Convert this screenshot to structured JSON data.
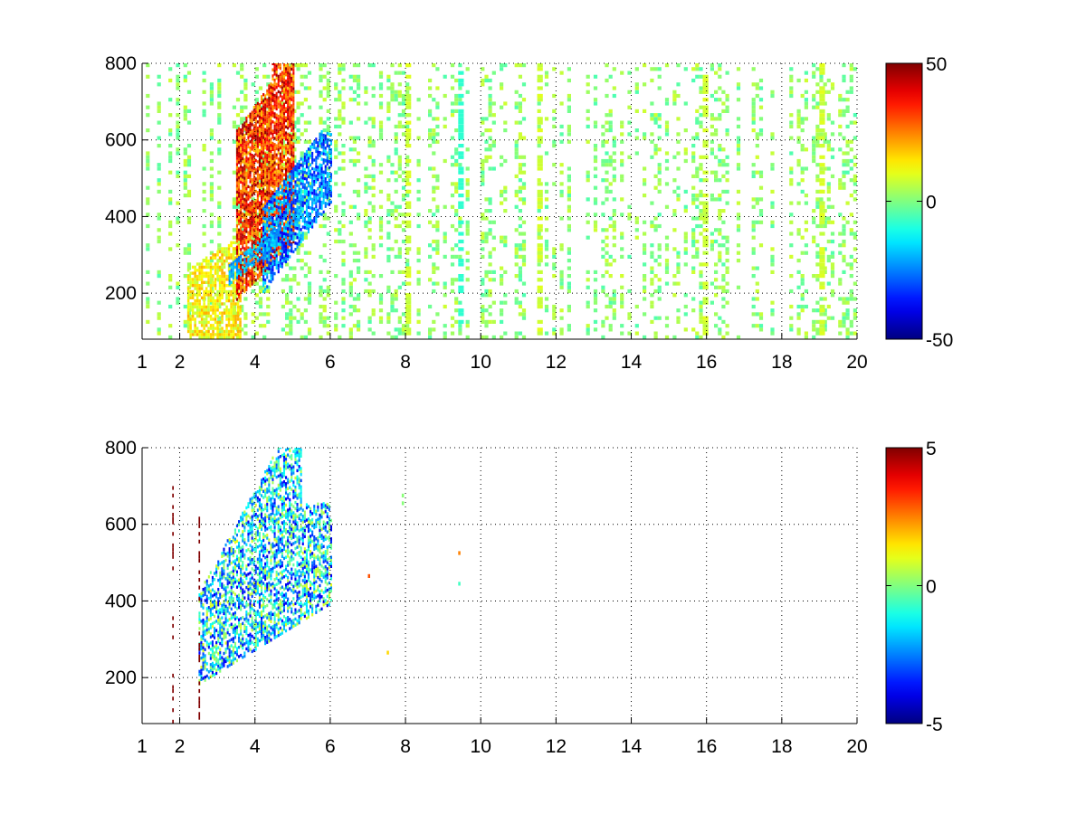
{
  "chart_data": [
    {
      "type": "heatmap",
      "title": "",
      "xlabel": "",
      "ylabel": "",
      "xlim": [
        1,
        20
      ],
      "ylim": [
        80,
        800
      ],
      "x_ticks": [
        1,
        2,
        4,
        6,
        8,
        10,
        12,
        14,
        16,
        18,
        20
      ],
      "y_ticks": [
        200,
        400,
        600,
        800
      ],
      "grid": true,
      "colormap": "jet",
      "clim": [
        -50,
        50
      ],
      "colorbar_ticks": [
        -50,
        0,
        50
      ],
      "features": {
        "positive_band": {
          "x_range": [
            3.5,
            5.0
          ],
          "y_range": [
            180,
            800
          ],
          "value": 35
        },
        "negative_band": {
          "x_range": [
            4.2,
            6.0
          ],
          "y_range": [
            180,
            620
          ],
          "value": -30
        },
        "low_onset": {
          "x_range": [
            2.2,
            3.6
          ],
          "y_range": [
            80,
            320
          ],
          "value": 20
        },
        "noise_bins": {
          "x_range": [
            6,
            20
          ],
          "value_range": [
            -5,
            8
          ],
          "fill_fraction": 0.3
        }
      }
    },
    {
      "type": "heatmap",
      "title": "",
      "xlabel": "",
      "ylabel": "",
      "xlim": [
        1,
        20
      ],
      "ylim": [
        80,
        800
      ],
      "x_ticks": [
        1,
        2,
        4,
        6,
        8,
        10,
        12,
        14,
        16,
        18,
        20
      ],
      "y_ticks": [
        200,
        400,
        600,
        800
      ],
      "grid": true,
      "colormap": "jet",
      "clim": [
        -5,
        5
      ],
      "colorbar_ticks": [
        -5,
        0,
        5
      ],
      "features": {
        "main_cluster": {
          "x_range": [
            2.5,
            6.0
          ],
          "y_range": [
            180,
            800
          ],
          "value_range": [
            -4,
            1
          ]
        },
        "dark_red_streaks": {
          "x": [
            1.8,
            2.5
          ],
          "y_range": [
            80,
            700
          ],
          "value": 5
        },
        "sparse_points": {
          "x_range": [
            7,
            9.5
          ],
          "y_range": [
            250,
            700
          ],
          "value_range": [
            -1,
            3
          ]
        }
      }
    }
  ]
}
